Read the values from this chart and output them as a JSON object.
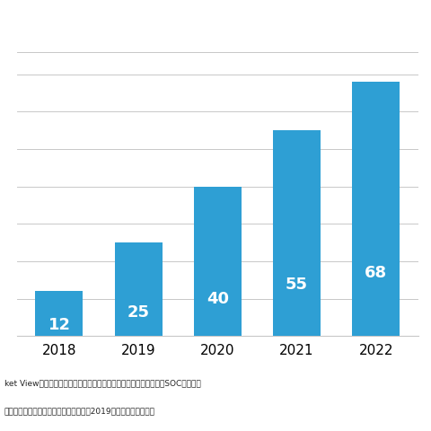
{
  "categories": [
    "2018",
    "2019",
    "2020",
    "2021",
    "2022"
  ],
  "values": [
    12,
    25,
    40,
    55,
    68
  ],
  "bar_color": "#2e9fd4",
  "label_color": "#ffffff",
  "label_fontsize": 13,
  "xlabel_fontsize": 11,
  "ylim": [
    0,
    76
  ],
  "yticks": [
    0,
    10,
    20,
    30,
    40,
    50,
    60,
    70
  ],
  "grid_color": "#c8c8c8",
  "background_color": "#ffffff",
  "footnote_line1": "ket View：エンドポイント・セキュリティ対策型／情報漏洩対策型SOCサービス",
  "footnote_line2": "金額を対象とし、３月期ベースで换算。2019年度以降は予測値。",
  "top_border_color": "#c8c8c8",
  "bottom_border_color": "#c8c8c8"
}
